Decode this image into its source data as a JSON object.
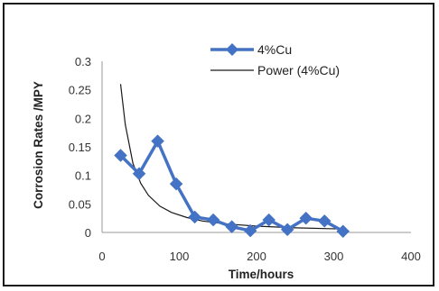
{
  "chart_data": {
    "type": "line",
    "xlabel": "Time/hours",
    "ylabel": "Corrosion Rates /MPY",
    "xlim": [
      0,
      400
    ],
    "ylim": [
      0,
      0.3
    ],
    "x_ticks": [
      "0",
      "100",
      "200",
      "300",
      "400"
    ],
    "y_ticks": [
      "0",
      "0.05",
      "0.1",
      "0.15",
      "0.2",
      "0.25",
      "0.3"
    ],
    "grid": false,
    "legend_position": "top-right",
    "series": [
      {
        "name": "4%Cu",
        "style": "line-with-diamond-markers",
        "color": "#4472c4",
        "x": [
          24,
          48,
          72,
          96,
          120,
          144,
          168,
          192,
          216,
          240,
          264,
          288,
          312
        ],
        "y": [
          0.135,
          0.103,
          0.16,
          0.085,
          0.027,
          0.022,
          0.01,
          0.003,
          0.022,
          0.005,
          0.025,
          0.02,
          0.002
        ]
      },
      {
        "name": "Power (4%Cu)",
        "style": "thin-trend-line",
        "color": "#1a1a1a",
        "x": [
          24,
          30,
          40,
          50,
          60,
          75,
          90,
          110,
          130,
          160,
          200,
          250,
          312
        ],
        "y": [
          0.26,
          0.189,
          0.121,
          0.086,
          0.065,
          0.046,
          0.035,
          0.026,
          0.02,
          0.015,
          0.011,
          0.008,
          0.006
        ]
      }
    ]
  }
}
